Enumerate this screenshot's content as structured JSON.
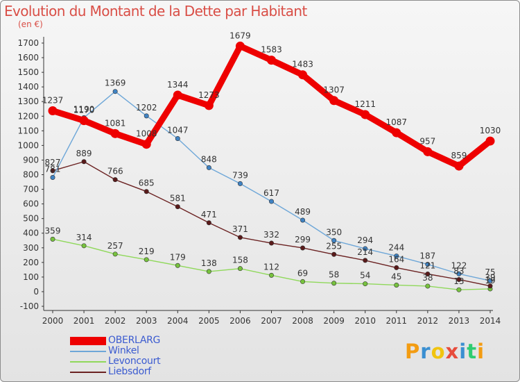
{
  "title": "Evolution du Montant de la Dette par Habitant",
  "subtitle": "(en €)",
  "brand": {
    "letters": [
      "P",
      "r",
      "o",
      "x",
      "i",
      "t",
      "i"
    ],
    "colors": [
      "#f39c12",
      "#3a8fd1",
      "#f1c40f",
      "#e74c3c",
      "#3a8fd1",
      "#2ecc71",
      "#f39c12"
    ]
  },
  "chart_data": {
    "type": "line",
    "categories": [
      "2000",
      "2001",
      "2002",
      "2003",
      "2004",
      "2005",
      "2006",
      "2007",
      "2008",
      "2009",
      "2010",
      "2011",
      "2012",
      "2013",
      "2014"
    ],
    "ylim": [
      -100,
      1700
    ],
    "yticks": [
      -100,
      0,
      100,
      200,
      300,
      400,
      500,
      600,
      700,
      800,
      900,
      1000,
      1100,
      1200,
      1300,
      1400,
      1500,
      1600,
      1700
    ],
    "grid": false,
    "legend_position": "bottom-left",
    "series": [
      {
        "name": "Levoncourt",
        "color": "#8fd85a",
        "marker": "#77c23e",
        "values": [
          359,
          314,
          257,
          219,
          179,
          138,
          158,
          112,
          69,
          58,
          54,
          45,
          38,
          13,
          19
        ],
        "labels": [
          "359",
          "314",
          "257",
          "219",
          "179",
          "138",
          "158",
          "112",
          "69",
          "58",
          "54",
          "45",
          "38",
          "13",
          "19"
        ]
      },
      {
        "name": "Liebsdorf",
        "color": "#6b2222",
        "marker": "#5a1a1a",
        "values": [
          827,
          889,
          766,
          685,
          581,
          471,
          371,
          332,
          299,
          255,
          214,
          164,
          121,
          83,
          39
        ],
        "labels": [
          "827",
          "889",
          "766",
          "685",
          "581",
          "471",
          "371",
          "332",
          "299",
          "255",
          "214",
          "164",
          "121",
          "83",
          "39"
        ]
      },
      {
        "name": "Winkel",
        "color": "#6ea7d8",
        "marker": "#3f83c4",
        "values": [
          781,
          1190,
          1369,
          1202,
          1047,
          848,
          739,
          617,
          489,
          350,
          294,
          244,
          187,
          122,
          75
        ],
        "labels": [
          "781",
          "1190",
          "1369",
          "1202",
          "1047",
          "848",
          "739",
          "617",
          "489",
          "350",
          "294",
          "244",
          "187",
          "122",
          "75"
        ]
      },
      {
        "name": "OBERLARG",
        "color": "#ee0000",
        "marker": "#ee0000",
        "values": [
          1237,
          1170,
          1081,
          1008,
          1344,
          1273,
          1679,
          1583,
          1483,
          1307,
          1211,
          1087,
          957,
          859,
          1030
        ],
        "labels": [
          "1237",
          "1170",
          "1081",
          "1008",
          "1344",
          "1273",
          "1679",
          "1583",
          "1483",
          "1307",
          "1211",
          "1087",
          "957",
          "859",
          "1030"
        ]
      }
    ],
    "legend": [
      {
        "name": "OBERLARG",
        "color": "#ee0000"
      },
      {
        "name": "Winkel",
        "color": "#6ea7d8"
      },
      {
        "name": "Levoncourt",
        "color": "#8fd85a"
      },
      {
        "name": "Liebsdorf",
        "color": "#6b2222"
      }
    ]
  }
}
